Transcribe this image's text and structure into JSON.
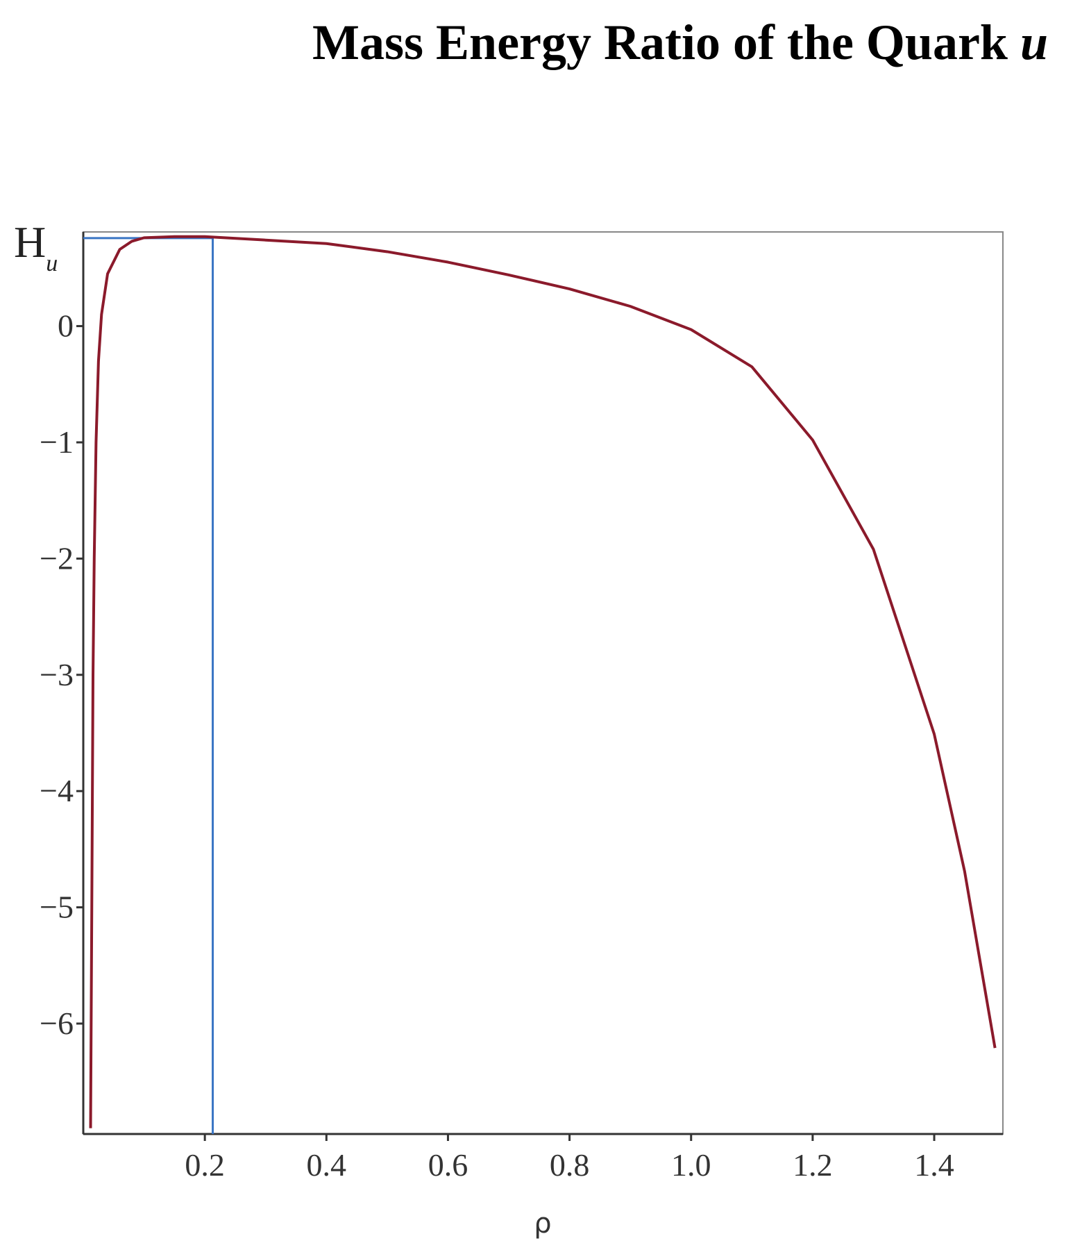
{
  "chart_data": {
    "type": "line",
    "title": "Mass Energy Ratio of the Quark",
    "title_italic": "u",
    "x_label": "ρ",
    "y_label": {
      "main": "H",
      "subscript": "u"
    },
    "x": [
      0.012,
      0.014,
      0.016,
      0.018,
      0.021,
      0.025,
      0.03,
      0.04,
      0.06,
      0.08,
      0.1,
      0.15,
      0.2,
      0.3,
      0.4,
      0.5,
      0.6,
      0.7,
      0.8,
      0.9,
      1.0,
      1.1,
      1.2,
      1.3,
      1.4,
      1.45,
      1.5
    ],
    "series": [
      {
        "color": "#8b1a2b",
        "values": [
          -6.9,
          -5,
          -3,
          -2,
          -1,
          -0.3,
          0.1,
          0.45,
          0.66,
          0.73,
          0.76,
          0.77,
          0.77,
          0.74,
          0.71,
          0.64,
          0.55,
          0.44,
          0.32,
          0.17,
          -0.03,
          -0.35,
          -0.98,
          -1.92,
          -3.51,
          -4.69,
          -6.21
        ]
      }
    ],
    "markers": {
      "x": 0.213,
      "y": 0.757,
      "color": "#3a75c4"
    },
    "xlim": [
      0,
      1.513
    ],
    "ylim": [
      -6.95,
      0.81
    ],
    "xticks": [
      0.2,
      0.4,
      0.6,
      0.8,
      {
        "value": 1,
        "label": "1.0"
      },
      1.2,
      1.4
    ],
    "yticks": [
      0,
      {
        "value": -1,
        "label": "−1"
      },
      {
        "value": -2,
        "label": "−2"
      },
      {
        "value": -3,
        "label": "−3"
      },
      {
        "value": -4,
        "label": "−4"
      },
      {
        "value": -5,
        "label": "−5"
      },
      {
        "value": -6,
        "label": "−6"
      }
    ]
  }
}
